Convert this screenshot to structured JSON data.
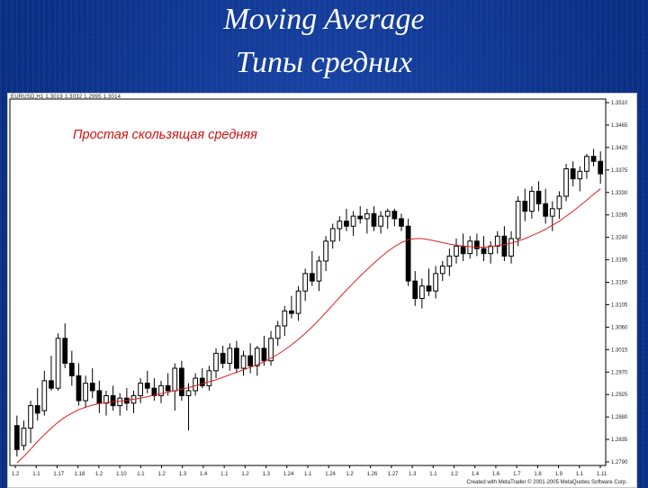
{
  "slide": {
    "title_line1": "Moving Average",
    "title_line2": "Типы средних"
  },
  "chart_header": "EURUSD,H1 1.3019 1.3032 1.2995 1.3014",
  "caption": "Простая скользящая средняя",
  "credit": "Created with MetaTrader © 2001-2005 MetaQuotes Software Corp.",
  "colors": {
    "background": "#0a2f86",
    "candle": "#000000",
    "moving_average": "#e02020",
    "caption": "#d01010"
  },
  "chart_data": {
    "type": "candlestick",
    "price_axis_labels": [
      "1.3510",
      "1.3465",
      "1.3420",
      "1.3375",
      "1.3330",
      "1.3285",
      "1.3240",
      "1.3195",
      "1.3150",
      "1.3105",
      "1.3060",
      "1.3015",
      "1.2970",
      "1.2925",
      "1.2880",
      "1.2835",
      "1.2790"
    ],
    "time_axis_labels": [
      "1.2",
      "1.1",
      "1.17",
      "1.18",
      "1.2",
      "1.10",
      "1.1",
      "1.2",
      "1.3",
      "1.4",
      "1.1",
      "1.2",
      "1.3",
      "1.24",
      "1.1",
      "1.24",
      "1.2",
      "1.26",
      "1.27",
      "1.3",
      "1.1",
      "1.2",
      "1.4",
      "1.6",
      "1.7",
      "1.8",
      "1.9",
      "1.1",
      "1.11"
    ],
    "ylim": [
      1.279,
      1.3525
    ],
    "candles": [
      {
        "o": 1.287,
        "h": 1.289,
        "l": 1.2808,
        "c": 1.2822
      },
      {
        "o": 1.283,
        "h": 1.288,
        "l": 1.282,
        "c": 1.2865
      },
      {
        "o": 1.2865,
        "h": 1.292,
        "l": 1.2835,
        "c": 1.291
      },
      {
        "o": 1.291,
        "h": 1.2945,
        "l": 1.288,
        "c": 1.2895
      },
      {
        "o": 1.29,
        "h": 1.298,
        "l": 1.289,
        "c": 1.296
      },
      {
        "o": 1.296,
        "h": 1.301,
        "l": 1.294,
        "c": 1.2945
      },
      {
        "o": 1.2945,
        "h": 1.3055,
        "l": 1.294,
        "c": 1.3045
      },
      {
        "o": 1.3045,
        "h": 1.3075,
        "l": 1.2985,
        "c": 1.2995
      },
      {
        "o": 1.2995,
        "h": 1.302,
        "l": 1.295,
        "c": 1.297
      },
      {
        "o": 1.297,
        "h": 1.2995,
        "l": 1.291,
        "c": 1.292
      },
      {
        "o": 1.292,
        "h": 1.297,
        "l": 1.2905,
        "c": 1.2955
      },
      {
        "o": 1.2955,
        "h": 1.2985,
        "l": 1.2925,
        "c": 1.294
      },
      {
        "o": 1.294,
        "h": 1.296,
        "l": 1.2895,
        "c": 1.2915
      },
      {
        "o": 1.2915,
        "h": 1.294,
        "l": 1.289,
        "c": 1.293
      },
      {
        "o": 1.293,
        "h": 1.295,
        "l": 1.29,
        "c": 1.291
      },
      {
        "o": 1.291,
        "h": 1.2935,
        "l": 1.289,
        "c": 1.2925
      },
      {
        "o": 1.2925,
        "h": 1.2945,
        "l": 1.29,
        "c": 1.2915
      },
      {
        "o": 1.2915,
        "h": 1.294,
        "l": 1.2895,
        "c": 1.293
      },
      {
        "o": 1.293,
        "h": 1.2965,
        "l": 1.2915,
        "c": 1.2955
      },
      {
        "o": 1.2955,
        "h": 1.298,
        "l": 1.2935,
        "c": 1.2945
      },
      {
        "o": 1.2945,
        "h": 1.2965,
        "l": 1.292,
        "c": 1.293
      },
      {
        "o": 1.293,
        "h": 1.296,
        "l": 1.2915,
        "c": 1.295
      },
      {
        "o": 1.295,
        "h": 1.2975,
        "l": 1.293,
        "c": 1.294
      },
      {
        "o": 1.294,
        "h": 1.2995,
        "l": 1.29,
        "c": 1.2985
      },
      {
        "o": 1.2985,
        "h": 1.3,
        "l": 1.292,
        "c": 1.293
      },
      {
        "o": 1.293,
        "h": 1.2955,
        "l": 1.286,
        "c": 1.294
      },
      {
        "o": 1.294,
        "h": 1.2975,
        "l": 1.293,
        "c": 1.2965
      },
      {
        "o": 1.2965,
        "h": 1.2985,
        "l": 1.2945,
        "c": 1.295
      },
      {
        "o": 1.295,
        "h": 1.299,
        "l": 1.294,
        "c": 1.298
      },
      {
        "o": 1.298,
        "h": 1.3025,
        "l": 1.2965,
        "c": 1.3015
      },
      {
        "o": 1.3015,
        "h": 1.303,
        "l": 1.2985,
        "c": 1.2995
      },
      {
        "o": 1.2995,
        "h": 1.3035,
        "l": 1.298,
        "c": 1.3025
      },
      {
        "o": 1.3025,
        "h": 1.304,
        "l": 1.2975,
        "c": 1.2985
      },
      {
        "o": 1.2985,
        "h": 1.302,
        "l": 1.297,
        "c": 1.301
      },
      {
        "o": 1.301,
        "h": 1.3035,
        "l": 1.2975,
        "c": 1.299
      },
      {
        "o": 1.299,
        "h": 1.303,
        "l": 1.297,
        "c": 1.3025
      },
      {
        "o": 1.3025,
        "h": 1.305,
        "l": 1.299,
        "c": 1.3
      },
      {
        "o": 1.3,
        "h": 1.306,
        "l": 1.299,
        "c": 1.3045
      },
      {
        "o": 1.3045,
        "h": 1.308,
        "l": 1.303,
        "c": 1.307
      },
      {
        "o": 1.307,
        "h": 1.311,
        "l": 1.305,
        "c": 1.31
      },
      {
        "o": 1.31,
        "h": 1.313,
        "l": 1.3085,
        "c": 1.3095
      },
      {
        "o": 1.3095,
        "h": 1.315,
        "l": 1.308,
        "c": 1.314
      },
      {
        "o": 1.314,
        "h": 1.3185,
        "l": 1.312,
        "c": 1.3175
      },
      {
        "o": 1.3175,
        "h": 1.322,
        "l": 1.315,
        "c": 1.316
      },
      {
        "o": 1.316,
        "h": 1.321,
        "l": 1.314,
        "c": 1.32
      },
      {
        "o": 1.32,
        "h": 1.325,
        "l": 1.318,
        "c": 1.324
      },
      {
        "o": 1.324,
        "h": 1.3275,
        "l": 1.3225,
        "c": 1.3265
      },
      {
        "o": 1.3265,
        "h": 1.329,
        "l": 1.324,
        "c": 1.328
      },
      {
        "o": 1.328,
        "h": 1.3305,
        "l": 1.326,
        "c": 1.327
      },
      {
        "o": 1.327,
        "h": 1.33,
        "l": 1.325,
        "c": 1.329
      },
      {
        "o": 1.329,
        "h": 1.331,
        "l": 1.3275,
        "c": 1.3285
      },
      {
        "o": 1.3285,
        "h": 1.3305,
        "l": 1.3255,
        "c": 1.3295
      },
      {
        "o": 1.3295,
        "h": 1.331,
        "l": 1.326,
        "c": 1.327
      },
      {
        "o": 1.327,
        "h": 1.33,
        "l": 1.3255,
        "c": 1.329
      },
      {
        "o": 1.329,
        "h": 1.3305,
        "l": 1.3265,
        "c": 1.33
      },
      {
        "o": 1.33,
        "h": 1.3305,
        "l": 1.327,
        "c": 1.3285
      },
      {
        "o": 1.3285,
        "h": 1.3295,
        "l": 1.326,
        "c": 1.327
      },
      {
        "o": 1.327,
        "h": 1.3285,
        "l": 1.315,
        "c": 1.316
      },
      {
        "o": 1.316,
        "h": 1.318,
        "l": 1.311,
        "c": 1.3125
      },
      {
        "o": 1.3125,
        "h": 1.3165,
        "l": 1.3105,
        "c": 1.315
      },
      {
        "o": 1.315,
        "h": 1.3185,
        "l": 1.313,
        "c": 1.314
      },
      {
        "o": 1.314,
        "h": 1.319,
        "l": 1.3125,
        "c": 1.3175
      },
      {
        "o": 1.3175,
        "h": 1.32,
        "l": 1.316,
        "c": 1.319
      },
      {
        "o": 1.319,
        "h": 1.3225,
        "l": 1.317,
        "c": 1.321
      },
      {
        "o": 1.321,
        "h": 1.3245,
        "l": 1.3195,
        "c": 1.323
      },
      {
        "o": 1.323,
        "h": 1.3255,
        "l": 1.32,
        "c": 1.3215
      },
      {
        "o": 1.3215,
        "h": 1.325,
        "l": 1.3205,
        "c": 1.324
      },
      {
        "o": 1.324,
        "h": 1.3255,
        "l": 1.321,
        "c": 1.3225
      },
      {
        "o": 1.3225,
        "h": 1.325,
        "l": 1.32,
        "c": 1.3215
      },
      {
        "o": 1.3215,
        "h": 1.324,
        "l": 1.3195,
        "c": 1.323
      },
      {
        "o": 1.323,
        "h": 1.326,
        "l": 1.3215,
        "c": 1.325
      },
      {
        "o": 1.325,
        "h": 1.327,
        "l": 1.32,
        "c": 1.321
      },
      {
        "o": 1.321,
        "h": 1.326,
        "l": 1.3195,
        "c": 1.3245
      },
      {
        "o": 1.3245,
        "h": 1.333,
        "l": 1.323,
        "c": 1.332
      },
      {
        "o": 1.332,
        "h": 1.3345,
        "l": 1.328,
        "c": 1.33
      },
      {
        "o": 1.33,
        "h": 1.335,
        "l": 1.3285,
        "c": 1.334
      },
      {
        "o": 1.334,
        "h": 1.336,
        "l": 1.33,
        "c": 1.3315
      },
      {
        "o": 1.3315,
        "h": 1.3345,
        "l": 1.3275,
        "c": 1.329
      },
      {
        "o": 1.329,
        "h": 1.332,
        "l": 1.326,
        "c": 1.3305
      },
      {
        "o": 1.3305,
        "h": 1.334,
        "l": 1.3285,
        "c": 1.333
      },
      {
        "o": 1.333,
        "h": 1.3395,
        "l": 1.332,
        "c": 1.3385
      },
      {
        "o": 1.3385,
        "h": 1.34,
        "l": 1.335,
        "c": 1.3365
      },
      {
        "o": 1.3365,
        "h": 1.339,
        "l": 1.334,
        "c": 1.338
      },
      {
        "o": 1.338,
        "h": 1.3415,
        "l": 1.3365,
        "c": 1.341
      },
      {
        "o": 1.341,
        "h": 1.3425,
        "l": 1.339,
        "c": 1.34
      },
      {
        "o": 1.34,
        "h": 1.342,
        "l": 1.3355,
        "c": 1.3375
      }
    ],
    "moving_average": [
      1.2795,
      1.2808,
      1.2823,
      1.2838,
      1.2852,
      1.2865,
      1.2877,
      1.2887,
      1.2895,
      1.2902,
      1.2907,
      1.2911,
      1.2914,
      1.2916,
      1.2918,
      1.2919,
      1.2921,
      1.2923,
      1.2925,
      1.2928,
      1.2931,
      1.2934,
      1.2937,
      1.294,
      1.2943,
      1.2946,
      1.295,
      1.2954,
      1.2958,
      1.2962,
      1.2967,
      1.2972,
      1.2977,
      1.2982,
      1.2987,
      1.2992,
      1.2998,
      1.3005,
      1.3013,
      1.3022,
      1.3032,
      1.3043,
      1.3055,
      1.3068,
      1.3082,
      1.3097,
      1.3112,
      1.3127,
      1.3142,
      1.3156,
      1.317,
      1.3183,
      1.3196,
      1.3208,
      1.3219,
      1.3229,
      1.3237,
      1.3243,
      1.3245,
      1.3245,
      1.3243,
      1.324,
      1.3237,
      1.3234,
      1.3232,
      1.323,
      1.3229,
      1.3228,
      1.3228,
      1.3229,
      1.3231,
      1.3233,
      1.3236,
      1.324,
      1.3245,
      1.3251,
      1.3257,
      1.3264,
      1.3272,
      1.328,
      1.329,
      1.33,
      1.3311,
      1.3322,
      1.3334,
      1.3345
    ]
  }
}
